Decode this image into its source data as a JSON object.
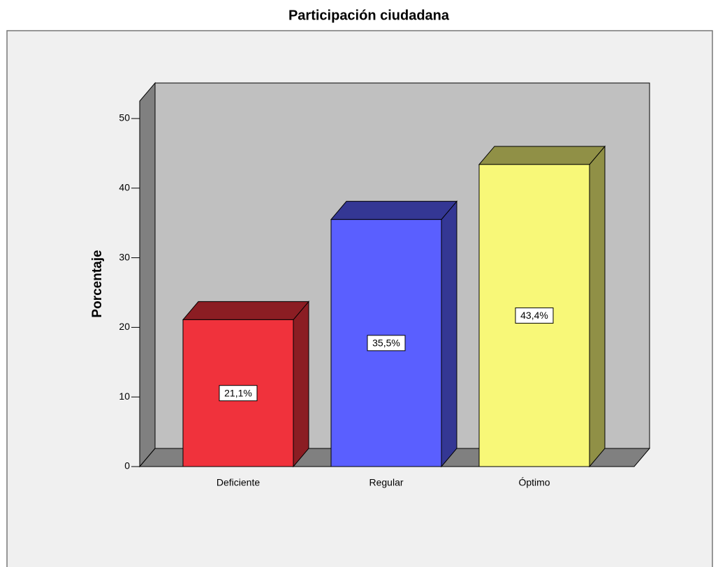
{
  "chart_data": {
    "type": "bar3d",
    "title": "Participación ciudadana",
    "y_label": "Porcentaje",
    "categories": [
      "Deficiente",
      "Regular",
      "Óptimo"
    ],
    "series": [
      {
        "name": "Porcentaje",
        "colors": [
          "#f0323c",
          "#5a5fff",
          "#f8f878"
        ],
        "values": [
          21.1,
          35.5,
          43.4
        ]
      }
    ],
    "value_labels": [
      "21,1%",
      "35,5%",
      "43,4%"
    ],
    "ylim": [
      0,
      52.5
    ],
    "yticks": [
      0,
      10,
      20,
      30,
      40,
      50
    ]
  }
}
